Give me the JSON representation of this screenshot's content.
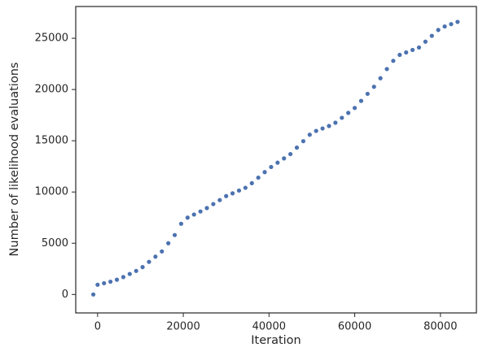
{
  "chart_data": {
    "type": "scatter",
    "xlabel": "Iteration",
    "ylabel": "Number of likelihood evaluations",
    "color": "#4c72b0",
    "x": [
      -1000,
      0,
      1500,
      3000,
      4500,
      6000,
      7500,
      9000,
      10500,
      12000,
      13500,
      15000,
      16500,
      18000,
      19500,
      21000,
      22500,
      24000,
      25500,
      27000,
      28500,
      30000,
      31500,
      33000,
      34500,
      36000,
      37500,
      39000,
      40500,
      42000,
      43500,
      45000,
      46500,
      48000,
      49500,
      51000,
      52500,
      54000,
      55500,
      57000,
      58500,
      60000,
      61500,
      63000,
      64500,
      66000,
      67500,
      69000,
      70500,
      72000,
      73500,
      75000,
      76500,
      78000,
      79500,
      81000,
      82500,
      84000
    ],
    "values": [
      0,
      950,
      1100,
      1250,
      1440,
      1700,
      2000,
      2300,
      2670,
      3180,
      3690,
      4200,
      5000,
      5800,
      6900,
      7500,
      7800,
      8100,
      8430,
      8820,
      9210,
      9600,
      9870,
      10140,
      10410,
      10860,
      11400,
      11940,
      12440,
      12860,
      13280,
      13700,
      14330,
      14960,
      15590,
      15960,
      16200,
      16440,
      16760,
      17240,
      17720,
      18200,
      18890,
      19580,
      20270,
      21100,
      22000,
      22800,
      23380,
      23620,
      23860,
      24100,
      24670,
      25240,
      25810,
      26150,
      26380,
      26600
    ],
    "xlim": [
      -5100,
      88400
    ],
    "ylim": [
      -1800,
      28100
    ],
    "xticks": [
      0,
      20000,
      40000,
      60000,
      80000
    ],
    "yticks": [
      0,
      5000,
      10000,
      15000,
      20000,
      25000
    ]
  }
}
